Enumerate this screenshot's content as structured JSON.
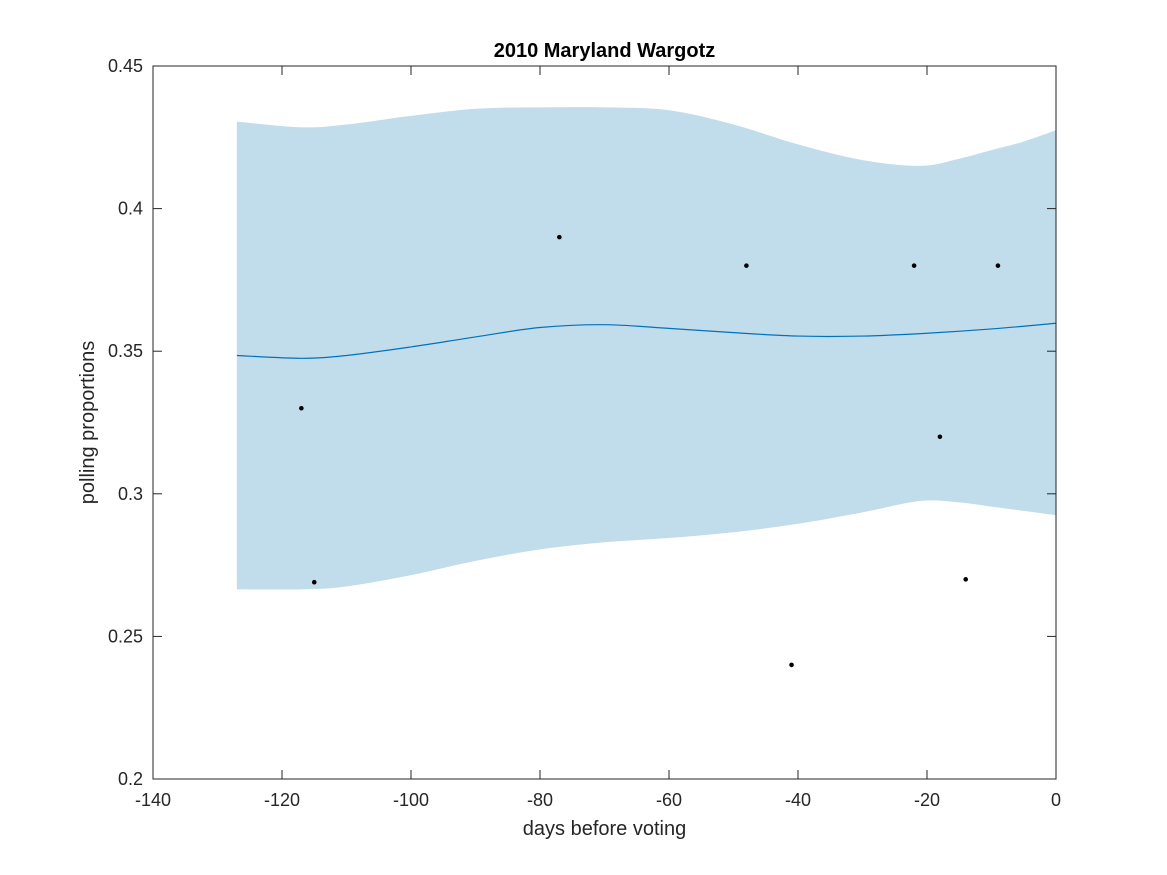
{
  "chart_data": {
    "type": "line",
    "title": "2010 Maryland Wargotz",
    "xlabel": "days before voting",
    "ylabel": "polling proportions",
    "xlim": [
      -140,
      0
    ],
    "ylim": [
      0.2,
      0.45
    ],
    "xticks": [
      -140,
      -120,
      -100,
      -80,
      -60,
      -40,
      -20,
      0
    ],
    "yticks": [
      0.2,
      0.25,
      0.3,
      0.35,
      0.4,
      0.45
    ],
    "xtick_labels": [
      "-140",
      "-120",
      "-100",
      "-80",
      "-60",
      "-40",
      "-20",
      "0"
    ],
    "ytick_labels": [
      "0.2",
      "0.25",
      "0.3",
      "0.35",
      "0.4",
      "0.45"
    ],
    "grid": false,
    "colors": {
      "band": "#c1dcea",
      "line": "#0072bd",
      "points": "#000000",
      "axes": "#262626"
    },
    "band": {
      "x": [
        -127,
        -117,
        -110,
        -100,
        -90,
        -80,
        -70,
        -60,
        -50,
        -40,
        -30,
        -21,
        -15,
        -10,
        -5,
        0
      ],
      "upper": [
        0.4305,
        0.4285,
        0.4295,
        0.4325,
        0.435,
        0.4355,
        0.4355,
        0.4345,
        0.4295,
        0.4225,
        0.417,
        0.415,
        0.4175,
        0.4205,
        0.4235,
        0.4275
      ],
      "lower": [
        0.2665,
        0.2665,
        0.2675,
        0.2715,
        0.2765,
        0.2805,
        0.283,
        0.2845,
        0.2865,
        0.2895,
        0.2935,
        0.2975,
        0.297,
        0.2955,
        0.294,
        0.2925
      ]
    },
    "line": {
      "x": [
        -127,
        -117,
        -110,
        -100,
        -90,
        -80,
        -70,
        -60,
        -50,
        -40,
        -30,
        -20,
        -10,
        0
      ],
      "y": [
        0.3485,
        0.3475,
        0.3485,
        0.3515,
        0.355,
        0.3583,
        0.3593,
        0.358,
        0.3565,
        0.3553,
        0.3553,
        0.3563,
        0.3578,
        0.3598
      ]
    },
    "points": {
      "x": [
        -117,
        -115,
        -77,
        -48,
        -41,
        -22,
        -18,
        -14,
        -9
      ],
      "y": [
        0.33,
        0.269,
        0.39,
        0.38,
        0.24,
        0.38,
        0.32,
        0.27,
        0.38
      ]
    }
  }
}
